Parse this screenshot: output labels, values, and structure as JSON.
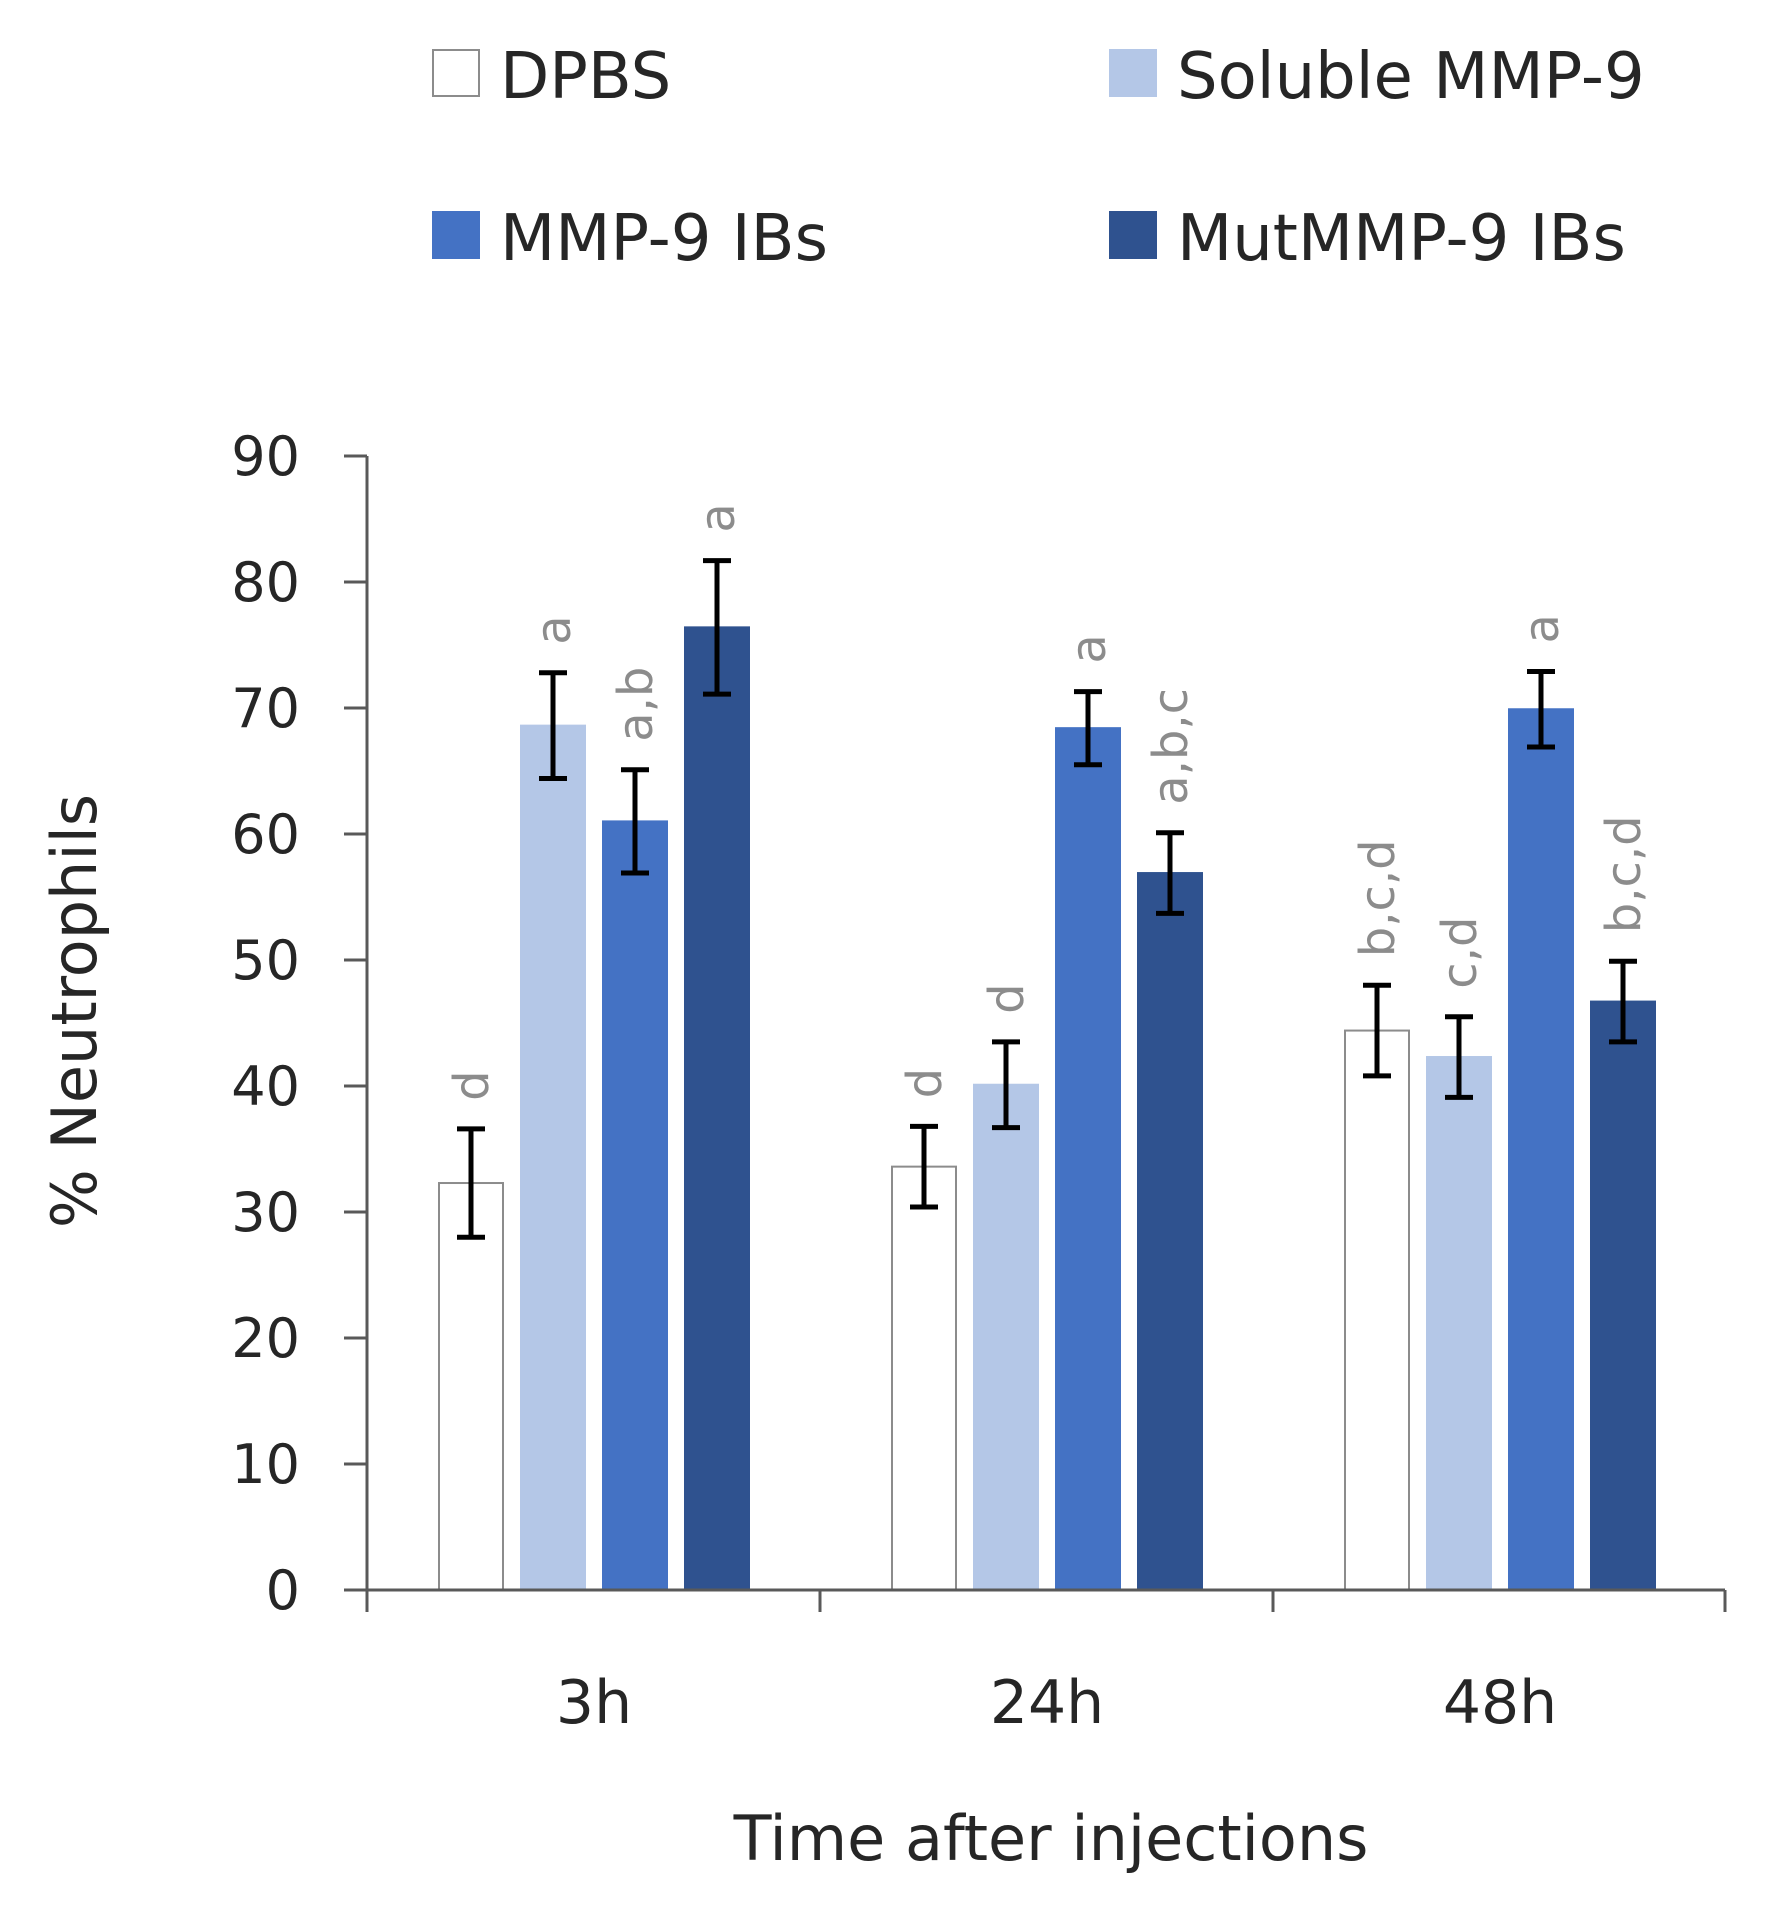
{
  "chart_data": {
    "type": "bar",
    "title": "",
    "xlabel": "Time after injections",
    "ylabel": "% Neutrophils",
    "ylim": [
      0,
      90
    ],
    "yticks": [
      0,
      10,
      20,
      30,
      40,
      50,
      60,
      70,
      80,
      90
    ],
    "grid": false,
    "legend_position": "top",
    "categories": [
      "3h",
      "24h",
      "48h"
    ],
    "series": [
      {
        "name": "DPBS",
        "color": "#ffffff",
        "stroke": "#8c8c8c",
        "values": [
          32.3,
          33.6,
          44.4
        ],
        "errors": [
          4.3,
          3.2,
          3.6
        ],
        "labels": [
          "d",
          "d",
          "b,c,d"
        ]
      },
      {
        "name": "Soluble MMP-9",
        "color": "#b4c7e7",
        "stroke": "#b4c7e7",
        "values": [
          68.6,
          40.1,
          42.3
        ],
        "errors": [
          4.2,
          3.4,
          3.2
        ],
        "labels": [
          "a",
          "d",
          "c,d"
        ]
      },
      {
        "name": "MMP-9 IBs",
        "color": "#4472c4",
        "stroke": "#4472c4",
        "values": [
          61.0,
          68.4,
          69.9
        ],
        "errors": [
          4.1,
          2.9,
          3.0
        ],
        "labels": [
          "a,b",
          "a",
          "a"
        ]
      },
      {
        "name": "MutMMP-9 IBs",
        "color": "#2f528f",
        "stroke": "#2f528f",
        "values": [
          76.4,
          56.9,
          46.7
        ],
        "errors": [
          5.3,
          3.2,
          3.2
        ],
        "labels": [
          "a",
          "a,b,c",
          "b,c,d"
        ]
      }
    ]
  }
}
